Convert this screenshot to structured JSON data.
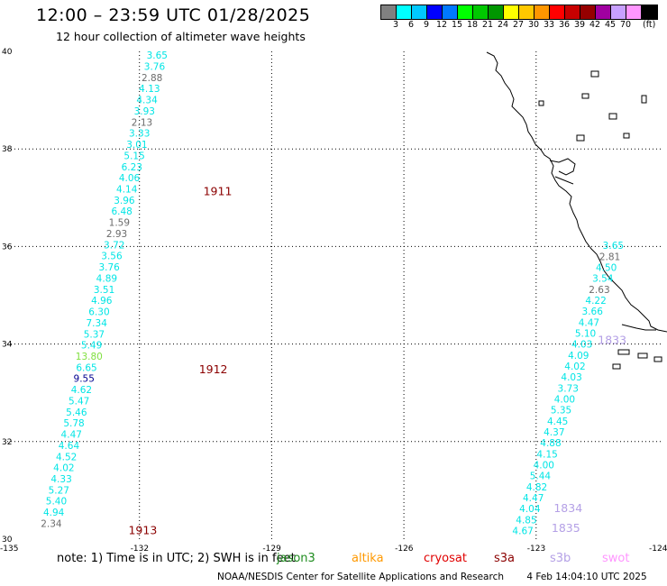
{
  "header": {
    "title": "12:00 – 23:59 UTC 01/28/2025",
    "subtitle": "12 hour collection of altimeter wave heights"
  },
  "legend": {
    "colors": [
      "#808080",
      "#00ffff",
      "#00c8ff",
      "#0000ff",
      "#0078ff",
      "#00ff00",
      "#00c800",
      "#009600",
      "#ffff00",
      "#ffc800",
      "#ff9600",
      "#ff0000",
      "#c80000",
      "#960000",
      "#a000a0",
      "#c8a0ff",
      "#ff96ff",
      "#000000"
    ],
    "ticks": [
      "3",
      "6",
      "9",
      "12",
      "15",
      "18",
      "21",
      "24",
      "27",
      "30",
      "33",
      "36",
      "39",
      "42",
      "45",
      "70"
    ],
    "unit": "(ft)"
  },
  "map": {
    "lon_range": [
      -135,
      -124
    ],
    "lat_range": [
      30,
      40
    ],
    "x_ticks": [
      "-135",
      "-132",
      "-129",
      "-126",
      "-123",
      "-124"
    ],
    "y_ticks": [
      "40",
      "38",
      "36",
      "34",
      "32",
      "30"
    ],
    "colors": {
      "cyan": "#00e5e5",
      "gray": "#6b6b6b",
      "dkblue": "#000090",
      "lgreen": "#80e040",
      "label_red": "#8b0000",
      "label_lav": "#b4a0e6"
    },
    "passes": [
      {
        "id": "1911",
        "lon": -130.55,
        "lat": 37.05
      },
      {
        "id": "1912",
        "lon": -130.65,
        "lat": 33.4
      },
      {
        "id": "1913",
        "lon": -132.25,
        "lat": 30.1
      },
      {
        "id": "1833",
        "lon": -121.6,
        "lat": 34.0
      },
      {
        "id": "1834",
        "lon": -122.6,
        "lat": 30.55
      },
      {
        "id": "1835",
        "lon": -122.65,
        "lat": 30.15
      }
    ],
    "track_west": {
      "start": [
        -131.6,
        39.85
      ],
      "end": [
        -134.0,
        30.25
      ],
      "values": [
        {
          "v": "3.65",
          "c": "cyan"
        },
        {
          "v": "3.76",
          "c": "cyan"
        },
        {
          "v": "2.88",
          "c": "gray"
        },
        {
          "v": "4.13",
          "c": "cyan"
        },
        {
          "v": "4.34",
          "c": "cyan"
        },
        {
          "v": "3.93",
          "c": "cyan"
        },
        {
          "v": "2.13",
          "c": "gray"
        },
        {
          "v": "3.33",
          "c": "cyan"
        },
        {
          "v": "3.01",
          "c": "cyan"
        },
        {
          "v": "5.15",
          "c": "cyan"
        },
        {
          "v": "6.23",
          "c": "cyan"
        },
        {
          "v": "4.06",
          "c": "cyan"
        },
        {
          "v": "4.14",
          "c": "cyan"
        },
        {
          "v": "3.96",
          "c": "cyan"
        },
        {
          "v": "6.48",
          "c": "cyan"
        },
        {
          "v": "1.59",
          "c": "gray"
        },
        {
          "v": "2.93",
          "c": "gray"
        },
        {
          "v": "3.72",
          "c": "cyan"
        },
        {
          "v": "3.56",
          "c": "cyan"
        },
        {
          "v": "3.76",
          "c": "cyan"
        },
        {
          "v": "4.89",
          "c": "cyan"
        },
        {
          "v": "3.51",
          "c": "cyan"
        },
        {
          "v": "4.96",
          "c": "cyan"
        },
        {
          "v": "6.30",
          "c": "cyan"
        },
        {
          "v": "7.34",
          "c": "cyan"
        },
        {
          "v": "5.37",
          "c": "cyan"
        },
        {
          "v": "5.49",
          "c": "cyan"
        },
        {
          "v": "13.80",
          "c": "lgreen"
        },
        {
          "v": "6.65",
          "c": "cyan"
        },
        {
          "v": "9.55",
          "c": "dkblue"
        },
        {
          "v": "4.62",
          "c": "cyan"
        },
        {
          "v": "5.47",
          "c": "cyan"
        },
        {
          "v": "5.46",
          "c": "cyan"
        },
        {
          "v": "5.78",
          "c": "cyan"
        },
        {
          "v": "4.47",
          "c": "cyan"
        },
        {
          "v": "4.64",
          "c": "cyan"
        },
        {
          "v": "4.52",
          "c": "cyan"
        },
        {
          "v": "4.02",
          "c": "cyan"
        },
        {
          "v": "4.33",
          "c": "cyan"
        },
        {
          "v": "5.27",
          "c": "cyan"
        },
        {
          "v": "5.40",
          "c": "cyan"
        },
        {
          "v": "4.94",
          "c": "cyan"
        },
        {
          "v": "2.34",
          "c": "gray"
        }
      ]
    },
    "track_east": {
      "start": [
        -121.25,
        35.95
      ],
      "end": [
        -123.3,
        30.1
      ],
      "values": [
        {
          "v": "3.65",
          "c": "cyan"
        },
        {
          "v": "2.81",
          "c": "gray"
        },
        {
          "v": "4.50",
          "c": "cyan"
        },
        {
          "v": "3.54",
          "c": "cyan"
        },
        {
          "v": "2.63",
          "c": "gray"
        },
        {
          "v": "4.22",
          "c": "cyan"
        },
        {
          "v": "3.66",
          "c": "cyan"
        },
        {
          "v": "4.47",
          "c": "cyan"
        },
        {
          "v": "5.10",
          "c": "cyan"
        },
        {
          "v": "4.03",
          "c": "cyan"
        },
        {
          "v": "4.09",
          "c": "cyan"
        },
        {
          "v": "4.02",
          "c": "cyan"
        },
        {
          "v": "4.03",
          "c": "cyan"
        },
        {
          "v": "3.73",
          "c": "cyan"
        },
        {
          "v": "4.00",
          "c": "cyan"
        },
        {
          "v": "5.35",
          "c": "cyan"
        },
        {
          "v": "4.45",
          "c": "cyan"
        },
        {
          "v": "4.37",
          "c": "cyan"
        },
        {
          "v": "4.88",
          "c": "cyan"
        },
        {
          "v": "4.15",
          "c": "cyan"
        },
        {
          "v": "4.00",
          "c": "cyan"
        },
        {
          "v": "5.44",
          "c": "cyan"
        },
        {
          "v": "4.82",
          "c": "cyan"
        },
        {
          "v": "4.47",
          "c": "cyan"
        },
        {
          "v": "4.04",
          "c": "cyan"
        },
        {
          "v": "4.85",
          "c": "cyan"
        },
        {
          "v": "4.67",
          "c": "cyan"
        }
      ]
    }
  },
  "note": {
    "text": "note: 1) Time is in UTC; 2) SWH is in feet",
    "satellites": [
      {
        "name": "jason3",
        "color": "#1e8c1e"
      },
      {
        "name": "altika",
        "color": "#ff9900"
      },
      {
        "name": "cryosat",
        "color": "#e00000"
      },
      {
        "name": "s3a",
        "color": "#8b0000"
      },
      {
        "name": "s3b",
        "color": "#b4a0e6"
      },
      {
        "name": "swot",
        "color": "#ff96ff"
      }
    ]
  },
  "footer": {
    "credit": "NOAA/NESDIS Center for Satellite Applications and Research",
    "timestamp": "4 Feb 14:04:10 UTC 2025"
  }
}
